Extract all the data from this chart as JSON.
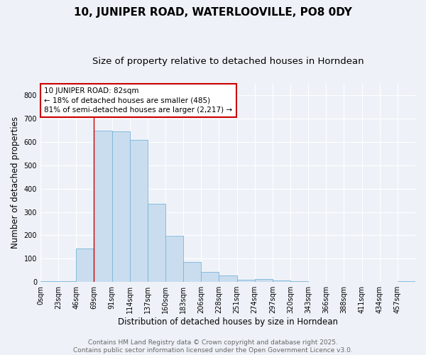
{
  "title": "10, JUNIPER ROAD, WATERLOOVILLE, PO8 0DY",
  "subtitle": "Size of property relative to detached houses in Horndean",
  "xlabel": "Distribution of detached houses by size in Horndean",
  "ylabel": "Number of detached properties",
  "bin_labels": [
    "0sqm",
    "23sqm",
    "46sqm",
    "69sqm",
    "91sqm",
    "114sqm",
    "137sqm",
    "160sqm",
    "183sqm",
    "206sqm",
    "228sqm",
    "251sqm",
    "274sqm",
    "297sqm",
    "320sqm",
    "343sqm",
    "366sqm",
    "388sqm",
    "411sqm",
    "434sqm",
    "457sqm"
  ],
  "bar_heights": [
    5,
    5,
    145,
    648,
    645,
    610,
    335,
    198,
    85,
    44,
    28,
    10,
    12,
    7,
    5,
    0,
    0,
    0,
    0,
    0,
    4
  ],
  "bar_color": "#c9ddef",
  "bar_edge_color": "#7ab4d8",
  "bar_width": 1.0,
  "ylim": [
    0,
    850
  ],
  "yticks": [
    0,
    100,
    200,
    300,
    400,
    500,
    600,
    700,
    800
  ],
  "marker_bin_index": 3,
  "marker_color": "#cc0000",
  "annotation_text": "10 JUNIPER ROAD: 82sqm\n← 18% of detached houses are smaller (485)\n81% of semi-detached houses are larger (2,217) →",
  "annotation_box_facecolor": "#ffffff",
  "annotation_box_edgecolor": "#cc0000",
  "footer_text": "Contains HM Land Registry data © Crown copyright and database right 2025.\nContains public sector information licensed under the Open Government Licence v3.0.",
  "background_color": "#eef2f8",
  "grid_color": "#ffffff",
  "title_fontsize": 11,
  "subtitle_fontsize": 9.5,
  "axis_label_fontsize": 8.5,
  "tick_fontsize": 7,
  "annotation_fontsize": 7.5,
  "footer_fontsize": 6.5
}
